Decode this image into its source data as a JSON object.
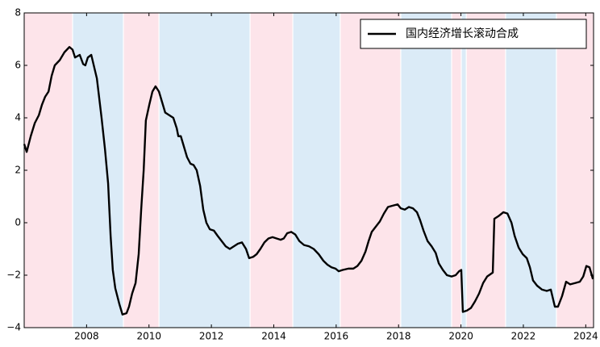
{
  "chart_data": {
    "type": "line",
    "xlim": [
      2006.0,
      2024.25
    ],
    "ylim": [
      -4,
      8
    ],
    "xticks": [
      2008,
      2010,
      2012,
      2014,
      2016,
      2018,
      2020,
      2022,
      2024
    ],
    "yticks": [
      {
        "value": -4,
        "label": "−4"
      },
      {
        "value": -2,
        "label": "−2"
      },
      0,
      2,
      4,
      6,
      8
    ],
    "legend": "upper right",
    "regions": [
      {
        "start": 2006.0,
        "end": 2007.55,
        "color": "#fde4ea"
      },
      {
        "start": 2007.55,
        "end": 2009.18,
        "color": "#dbebf7"
      },
      {
        "start": 2009.18,
        "end": 2010.32,
        "color": "#fde4ea"
      },
      {
        "start": 2010.32,
        "end": 2013.24,
        "color": "#dbebf7"
      },
      {
        "start": 2013.24,
        "end": 2014.61,
        "color": "#fde4ea"
      },
      {
        "start": 2014.61,
        "end": 2016.13,
        "color": "#dbebf7"
      },
      {
        "start": 2016.13,
        "end": 2018.07,
        "color": "#fde4ea"
      },
      {
        "start": 2018.07,
        "end": 2019.7,
        "color": "#dbebf7"
      },
      {
        "start": 2019.7,
        "end": 2020.01,
        "color": "#fde4ea"
      },
      {
        "start": 2020.01,
        "end": 2020.17,
        "color": "#dbebf7"
      },
      {
        "start": 2020.17,
        "end": 2021.43,
        "color": "#fde4ea"
      },
      {
        "start": 2021.43,
        "end": 2023.06,
        "color": "#dbebf7"
      },
      {
        "start": 2023.06,
        "end": 2024.25,
        "color": "#fde4ea"
      }
    ],
    "x": [
      2006.0,
      2006.08,
      2006.21,
      2006.34,
      2006.47,
      2006.57,
      2006.67,
      2006.78,
      2006.88,
      2006.98,
      2007.14,
      2007.29,
      2007.45,
      2007.55,
      2007.63,
      2007.78,
      2007.89,
      2007.96,
      2008.04,
      2008.15,
      2008.33,
      2008.48,
      2008.59,
      2008.69,
      2008.77,
      2008.84,
      2008.92,
      2009.05,
      2009.15,
      2009.28,
      2009.36,
      2009.46,
      2009.57,
      2009.67,
      2009.75,
      2009.83,
      2009.9,
      2010.01,
      2010.11,
      2010.21,
      2010.32,
      2010.42,
      2010.52,
      2010.65,
      2010.78,
      2010.89,
      2010.94,
      2011.02,
      2011.12,
      2011.22,
      2011.33,
      2011.43,
      2011.53,
      2011.64,
      2011.74,
      2011.84,
      2011.95,
      2012.08,
      2012.2,
      2012.33,
      2012.46,
      2012.59,
      2012.72,
      2012.85,
      2012.98,
      2013.11,
      2013.21,
      2013.34,
      2013.45,
      2013.57,
      2013.7,
      2013.83,
      2013.96,
      2014.09,
      2014.22,
      2014.32,
      2014.43,
      2014.56,
      2014.69,
      2014.82,
      2014.97,
      2015.13,
      2015.28,
      2015.44,
      2015.59,
      2015.72,
      2015.85,
      2015.98,
      2016.08,
      2016.21,
      2016.39,
      2016.55,
      2016.68,
      2016.81,
      2016.94,
      2017.04,
      2017.14,
      2017.27,
      2017.4,
      2017.53,
      2017.66,
      2017.81,
      2017.97,
      2018.07,
      2018.2,
      2018.33,
      2018.46,
      2018.59,
      2018.69,
      2018.8,
      2018.93,
      2019.06,
      2019.19,
      2019.29,
      2019.42,
      2019.55,
      2019.7,
      2019.83,
      2019.94,
      2020.01,
      2020.06,
      2020.19,
      2020.32,
      2020.45,
      2020.58,
      2020.71,
      2020.84,
      2021.02,
      2021.07,
      2021.2,
      2021.36,
      2021.49,
      2021.62,
      2021.72,
      2021.85,
      2021.98,
      2022.11,
      2022.21,
      2022.31,
      2022.44,
      2022.6,
      2022.75,
      2022.88,
      2023.01,
      2023.11,
      2023.24,
      2023.37,
      2023.5,
      2023.66,
      2023.81,
      2023.92,
      2024.02,
      2024.12,
      2024.23
    ],
    "series": [
      {
        "name": "国内经济增长滚动合成",
        "color": "#000000",
        "values": [
          3.0,
          2.7,
          3.3,
          3.8,
          4.1,
          4.5,
          4.8,
          5.0,
          5.6,
          6.0,
          6.2,
          6.5,
          6.7,
          6.6,
          6.3,
          6.4,
          6.05,
          6.0,
          6.3,
          6.4,
          5.5,
          4.0,
          2.8,
          1.5,
          -0.5,
          -1.8,
          -2.5,
          -3.1,
          -3.5,
          -3.45,
          -3.2,
          -2.7,
          -2.3,
          -1.2,
          0.5,
          2.0,
          3.9,
          4.5,
          5.0,
          5.2,
          5.0,
          4.6,
          4.2,
          4.1,
          4.0,
          3.6,
          3.3,
          3.3,
          2.9,
          2.5,
          2.25,
          2.2,
          2.0,
          1.4,
          0.5,
          0.0,
          -0.25,
          -0.3,
          -0.5,
          -0.7,
          -0.9,
          -1.0,
          -0.9,
          -0.8,
          -0.75,
          -1.0,
          -1.35,
          -1.3,
          -1.2,
          -1.0,
          -0.75,
          -0.6,
          -0.55,
          -0.6,
          -0.65,
          -0.6,
          -0.4,
          -0.35,
          -0.45,
          -0.7,
          -0.85,
          -0.9,
          -1.0,
          -1.2,
          -1.45,
          -1.6,
          -1.7,
          -1.75,
          -1.85,
          -1.8,
          -1.75,
          -1.75,
          -1.65,
          -1.45,
          -1.1,
          -0.7,
          -0.35,
          -0.15,
          0.05,
          0.35,
          0.6,
          0.65,
          0.7,
          0.55,
          0.5,
          0.6,
          0.55,
          0.4,
          0.1,
          -0.3,
          -0.7,
          -0.9,
          -1.15,
          -1.55,
          -1.8,
          -2.0,
          -2.05,
          -2.0,
          -1.85,
          -1.8,
          -3.4,
          -3.35,
          -3.25,
          -3.0,
          -2.7,
          -2.3,
          -2.05,
          -1.9,
          0.15,
          0.25,
          0.4,
          0.35,
          0.0,
          -0.5,
          -0.95,
          -1.2,
          -1.35,
          -1.7,
          -2.2,
          -2.4,
          -2.55,
          -2.6,
          -2.55,
          -3.2,
          -3.2,
          -2.8,
          -2.25,
          -2.35,
          -2.3,
          -2.25,
          -2.05,
          -1.65,
          -1.7,
          -2.15
        ]
      }
    ]
  }
}
